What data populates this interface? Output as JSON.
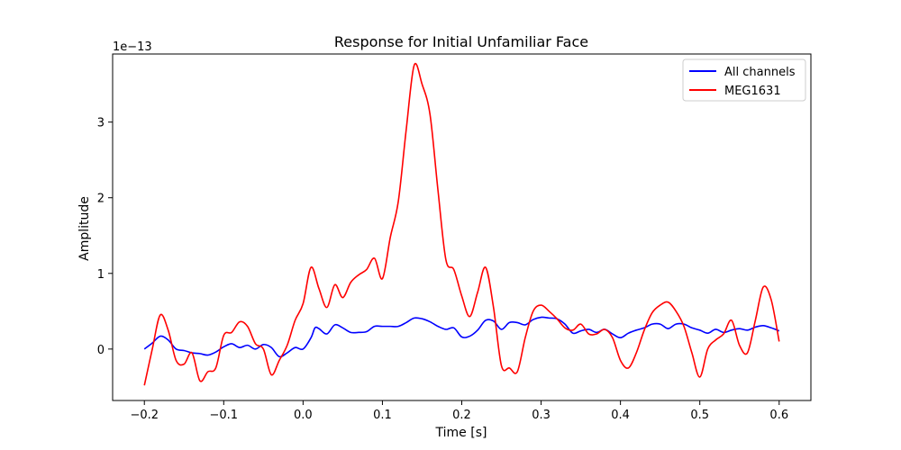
{
  "chart_data": {
    "type": "line",
    "title": "Response for Initial Unfamiliar Face",
    "xlabel": "Time [s]",
    "ylabel": "Amplitude",
    "y_offset_label": "1e−13",
    "xlim": [
      -0.24,
      0.64
    ],
    "ylim": [
      -0.68,
      3.9
    ],
    "x_ticks": [
      -0.2,
      -0.1,
      0.0,
      0.1,
      0.2,
      0.3,
      0.4,
      0.5,
      0.6
    ],
    "x_tick_labels": [
      "−0.2",
      "−0.1",
      "0.0",
      "0.1",
      "0.2",
      "0.3",
      "0.4",
      "0.5",
      "0.6"
    ],
    "y_ticks": [
      0,
      1,
      2,
      3
    ],
    "y_tick_labels": [
      "0",
      "1",
      "2",
      "3"
    ],
    "legend_position": "top-right",
    "grid": false,
    "series": [
      {
        "name": "All channels",
        "color": "#0000ff",
        "points": [
          [
            -0.2,
            0.0
          ],
          [
            -0.19,
            0.08
          ],
          [
            -0.18,
            0.17
          ],
          [
            -0.17,
            0.12
          ],
          [
            -0.16,
            0.0
          ],
          [
            -0.15,
            -0.02
          ],
          [
            -0.14,
            -0.05
          ],
          [
            -0.13,
            -0.06
          ],
          [
            -0.12,
            -0.08
          ],
          [
            -0.11,
            -0.04
          ],
          [
            -0.1,
            0.03
          ],
          [
            -0.09,
            0.07
          ],
          [
            -0.08,
            0.02
          ],
          [
            -0.07,
            0.05
          ],
          [
            -0.06,
            0.0
          ],
          [
            -0.05,
            0.06
          ],
          [
            -0.04,
            0.02
          ],
          [
            -0.03,
            -0.1
          ],
          [
            -0.02,
            -0.05
          ],
          [
            -0.01,
            0.02
          ],
          [
            0.0,
            0.0
          ],
          [
            0.01,
            0.15
          ],
          [
            0.015,
            0.28
          ],
          [
            0.02,
            0.27
          ],
          [
            0.03,
            0.2
          ],
          [
            0.04,
            0.32
          ],
          [
            0.05,
            0.28
          ],
          [
            0.06,
            0.22
          ],
          [
            0.07,
            0.22
          ],
          [
            0.08,
            0.23
          ],
          [
            0.09,
            0.3
          ],
          [
            0.1,
            0.3
          ],
          [
            0.11,
            0.3
          ],
          [
            0.12,
            0.3
          ],
          [
            0.13,
            0.35
          ],
          [
            0.14,
            0.41
          ],
          [
            0.15,
            0.4
          ],
          [
            0.16,
            0.36
          ],
          [
            0.17,
            0.3
          ],
          [
            0.18,
            0.26
          ],
          [
            0.19,
            0.28
          ],
          [
            0.2,
            0.16
          ],
          [
            0.21,
            0.17
          ],
          [
            0.22,
            0.25
          ],
          [
            0.23,
            0.38
          ],
          [
            0.24,
            0.37
          ],
          [
            0.25,
            0.26
          ],
          [
            0.26,
            0.35
          ],
          [
            0.27,
            0.35
          ],
          [
            0.28,
            0.32
          ],
          [
            0.29,
            0.39
          ],
          [
            0.3,
            0.42
          ],
          [
            0.31,
            0.41
          ],
          [
            0.32,
            0.4
          ],
          [
            0.33,
            0.33
          ],
          [
            0.34,
            0.21
          ],
          [
            0.35,
            0.24
          ],
          [
            0.36,
            0.26
          ],
          [
            0.37,
            0.22
          ],
          [
            0.38,
            0.26
          ],
          [
            0.39,
            0.2
          ],
          [
            0.4,
            0.15
          ],
          [
            0.41,
            0.21
          ],
          [
            0.42,
            0.25
          ],
          [
            0.43,
            0.28
          ],
          [
            0.44,
            0.33
          ],
          [
            0.45,
            0.33
          ],
          [
            0.46,
            0.27
          ],
          [
            0.47,
            0.33
          ],
          [
            0.48,
            0.33
          ],
          [
            0.49,
            0.28
          ],
          [
            0.5,
            0.25
          ],
          [
            0.51,
            0.21
          ],
          [
            0.52,
            0.26
          ],
          [
            0.53,
            0.22
          ],
          [
            0.54,
            0.25
          ],
          [
            0.55,
            0.27
          ],
          [
            0.56,
            0.25
          ],
          [
            0.57,
            0.29
          ],
          [
            0.58,
            0.31
          ],
          [
            0.59,
            0.28
          ],
          [
            0.6,
            0.24
          ]
        ]
      },
      {
        "name": "MEG1631",
        "color": "#ff0000",
        "points": [
          [
            -0.2,
            -0.48
          ],
          [
            -0.19,
            0.0
          ],
          [
            -0.18,
            0.45
          ],
          [
            -0.17,
            0.25
          ],
          [
            -0.16,
            -0.15
          ],
          [
            -0.15,
            -0.2
          ],
          [
            -0.14,
            -0.05
          ],
          [
            -0.13,
            -0.42
          ],
          [
            -0.12,
            -0.3
          ],
          [
            -0.11,
            -0.25
          ],
          [
            -0.1,
            0.18
          ],
          [
            -0.09,
            0.22
          ],
          [
            -0.08,
            0.36
          ],
          [
            -0.07,
            0.3
          ],
          [
            -0.06,
            0.07
          ],
          [
            -0.05,
            0.0
          ],
          [
            -0.04,
            -0.34
          ],
          [
            -0.03,
            -0.15
          ],
          [
            -0.02,
            0.05
          ],
          [
            -0.01,
            0.38
          ],
          [
            0.0,
            0.6
          ],
          [
            0.01,
            1.08
          ],
          [
            0.02,
            0.8
          ],
          [
            0.03,
            0.55
          ],
          [
            0.04,
            0.85
          ],
          [
            0.05,
            0.68
          ],
          [
            0.06,
            0.88
          ],
          [
            0.07,
            0.98
          ],
          [
            0.08,
            1.05
          ],
          [
            0.09,
            1.2
          ],
          [
            0.1,
            0.93
          ],
          [
            0.11,
            1.48
          ],
          [
            0.12,
            1.95
          ],
          [
            0.13,
            2.9
          ],
          [
            0.14,
            3.75
          ],
          [
            0.15,
            3.5
          ],
          [
            0.16,
            3.1
          ],
          [
            0.17,
            2.1
          ],
          [
            0.18,
            1.18
          ],
          [
            0.19,
            1.05
          ],
          [
            0.2,
            0.7
          ],
          [
            0.21,
            0.43
          ],
          [
            0.22,
            0.75
          ],
          [
            0.23,
            1.08
          ],
          [
            0.24,
            0.55
          ],
          [
            0.25,
            -0.22
          ],
          [
            0.26,
            -0.25
          ],
          [
            0.27,
            -0.3
          ],
          [
            0.28,
            0.15
          ],
          [
            0.29,
            0.5
          ],
          [
            0.3,
            0.58
          ],
          [
            0.31,
            0.5
          ],
          [
            0.32,
            0.4
          ],
          [
            0.33,
            0.28
          ],
          [
            0.34,
            0.25
          ],
          [
            0.35,
            0.33
          ],
          [
            0.36,
            0.2
          ],
          [
            0.37,
            0.2
          ],
          [
            0.38,
            0.26
          ],
          [
            0.39,
            0.15
          ],
          [
            0.4,
            -0.15
          ],
          [
            0.41,
            -0.25
          ],
          [
            0.42,
            -0.05
          ],
          [
            0.43,
            0.25
          ],
          [
            0.44,
            0.48
          ],
          [
            0.45,
            0.58
          ],
          [
            0.46,
            0.62
          ],
          [
            0.47,
            0.5
          ],
          [
            0.48,
            0.3
          ],
          [
            0.49,
            -0.05
          ],
          [
            0.5,
            -0.37
          ],
          [
            0.51,
            0.0
          ],
          [
            0.52,
            0.12
          ],
          [
            0.53,
            0.2
          ],
          [
            0.54,
            0.38
          ],
          [
            0.55,
            0.05
          ],
          [
            0.56,
            -0.05
          ],
          [
            0.57,
            0.38
          ],
          [
            0.58,
            0.82
          ],
          [
            0.59,
            0.65
          ],
          [
            0.6,
            0.1
          ]
        ]
      }
    ]
  }
}
